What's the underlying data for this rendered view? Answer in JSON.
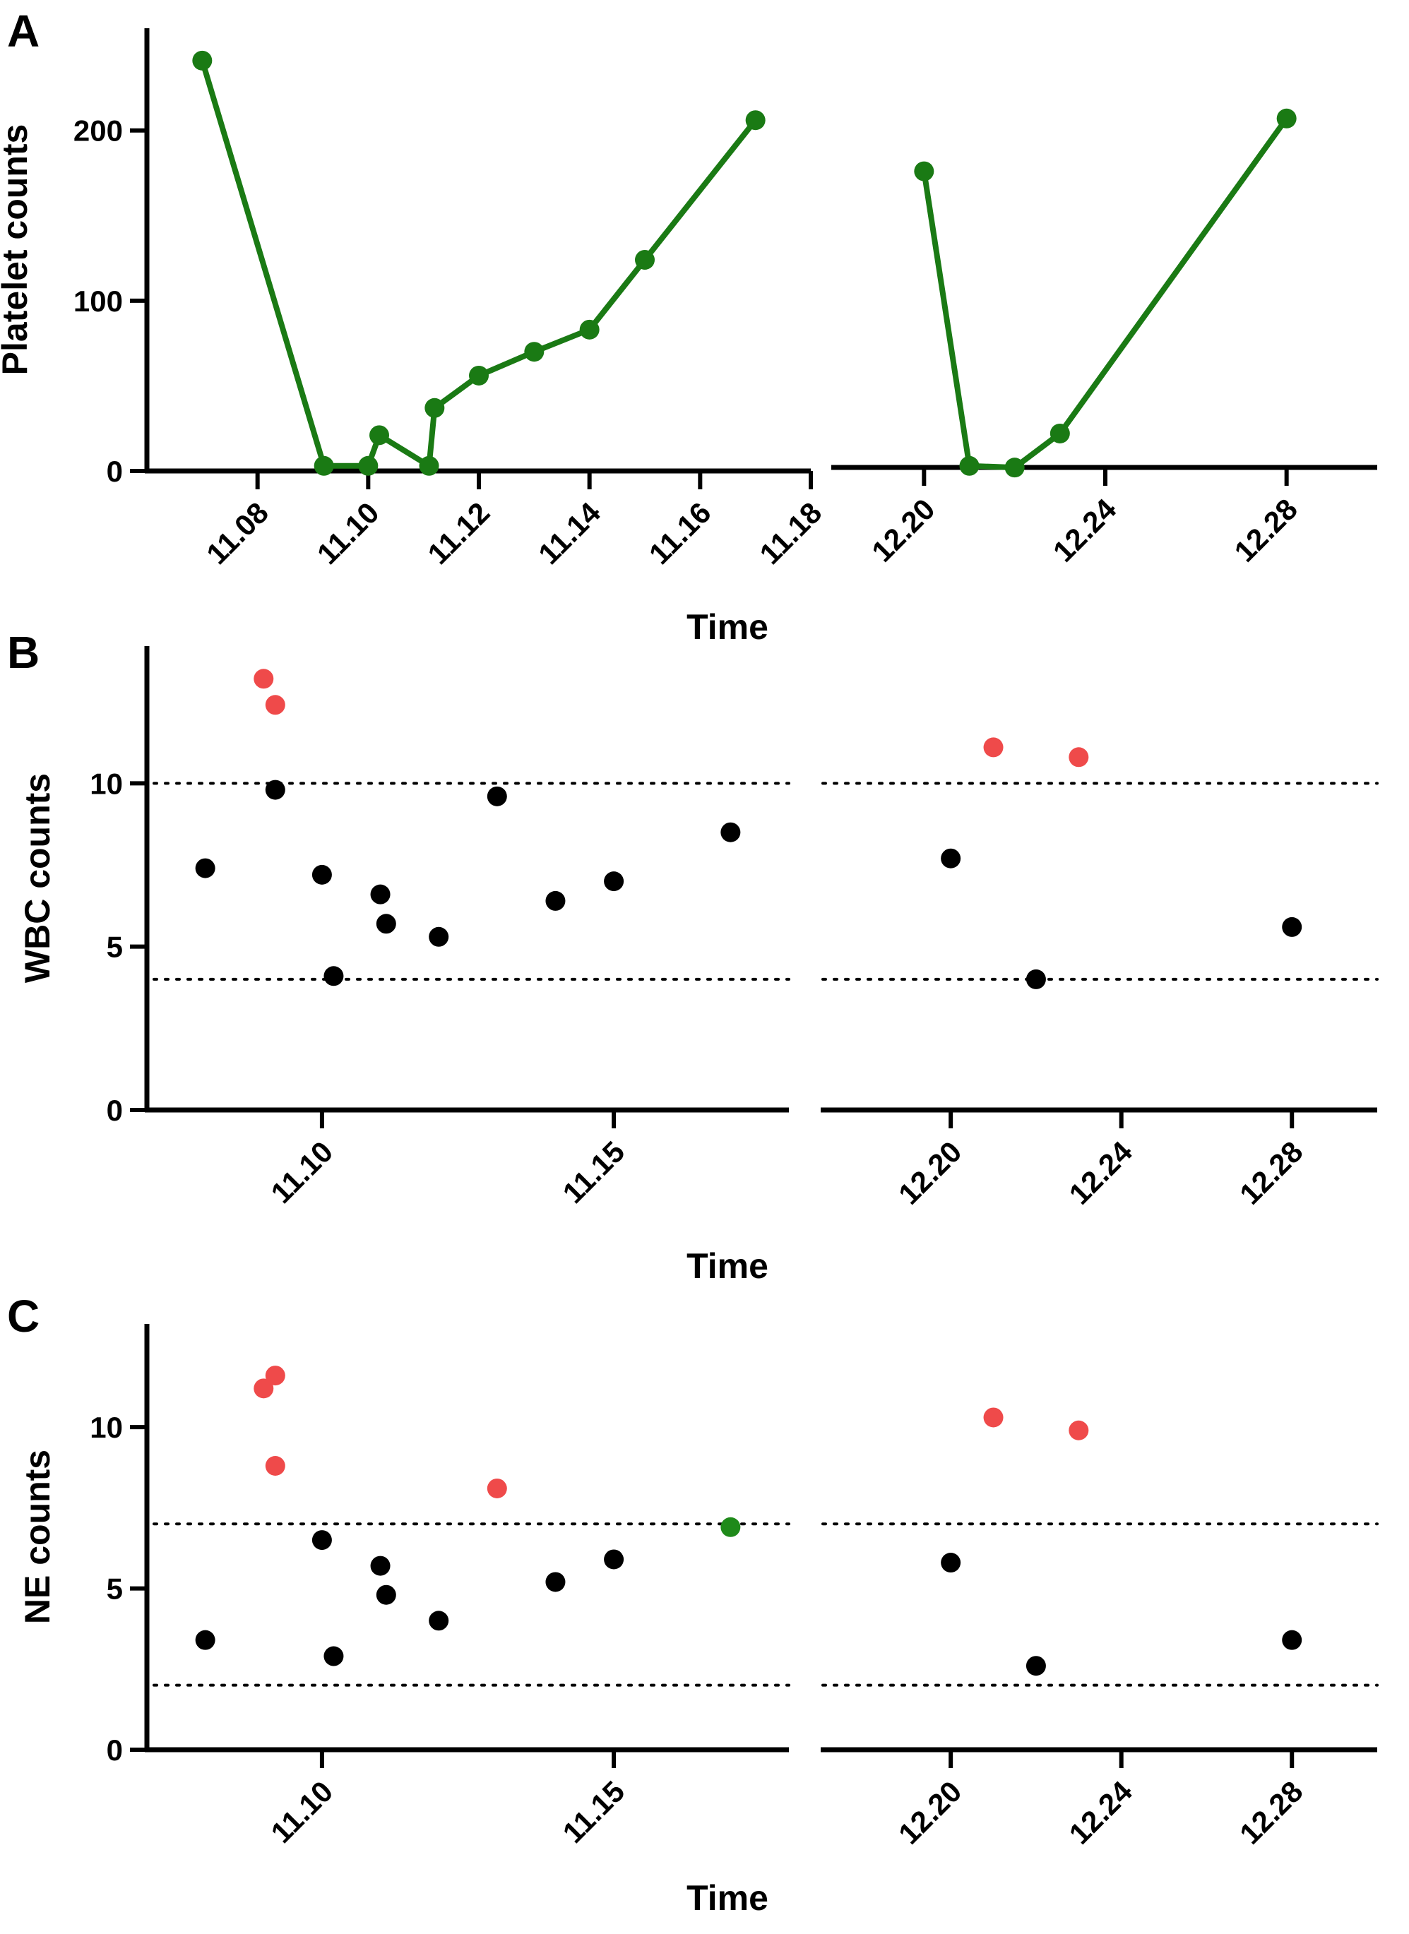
{
  "figure": {
    "colors": {
      "axis": "#000000",
      "line_green": "#1a7a14",
      "point_black": "#000000",
      "point_red": "#ef4a4a",
      "point_green": "#1f8a1a"
    }
  },
  "chart_data": [
    {
      "panel": "A",
      "type": "line",
      "ylabel": "Platelet counts",
      "xlabel": "Time",
      "ylim": [
        0,
        260
      ],
      "yticks": [
        0,
        100,
        200
      ],
      "segments": [
        {
          "xlim": [
            11.06,
            11.18
          ],
          "xticks": [
            "11.08",
            "11.10",
            "11.12",
            "11.14",
            "11.16",
            "11.18"
          ],
          "series": [
            {
              "name": "Platelet",
              "x": [
                11.07,
                11.092,
                11.1,
                11.102,
                11.111,
                11.112,
                11.12,
                11.13,
                11.14,
                11.15,
                11.17
              ],
              "y": [
                241,
                3,
                3,
                21,
                3,
                37,
                56,
                70,
                83,
                124,
                206
              ]
            }
          ]
        },
        {
          "xlim": [
            12.18,
            12.3
          ],
          "xticks": [
            "12.20",
            "12.24",
            "12.28"
          ],
          "series": [
            {
              "name": "Platelet",
              "x": [
                12.2,
                12.21,
                12.22,
                12.23,
                12.28
              ],
              "y": [
                176,
                3,
                2,
                22,
                207
              ]
            }
          ]
        }
      ]
    },
    {
      "panel": "B",
      "type": "scatter",
      "ylabel": "WBC counts",
      "xlabel": "Time",
      "ylim": [
        0,
        14.2
      ],
      "yticks": [
        0,
        5,
        10
      ],
      "reference_lines": [
        4,
        10
      ],
      "segments": [
        {
          "xlim": [
            11.07,
            11.18
          ],
          "xticks": [
            "11.10",
            "11.15"
          ],
          "points": {
            "black": {
              "x": [
                11.08,
                11.092,
                11.1,
                11.102,
                11.11,
                11.111,
                11.12,
                11.13,
                11.14,
                11.15,
                11.17
              ],
              "y": [
                7.4,
                9.8,
                7.2,
                4.1,
                6.6,
                5.7,
                5.3,
                9.6,
                6.4,
                7.0,
                8.5
              ]
            },
            "red": {
              "x": [
                11.09,
                11.092
              ],
              "y": [
                13.2,
                12.4
              ]
            }
          }
        },
        {
          "xlim": [
            12.17,
            12.3
          ],
          "xticks": [
            "12.20",
            "12.24",
            "12.28"
          ],
          "points": {
            "black": {
              "x": [
                12.2,
                12.22,
                12.28
              ],
              "y": [
                7.7,
                4.0,
                5.6
              ]
            },
            "red": {
              "x": [
                12.21,
                12.23
              ],
              "y": [
                11.1,
                10.8
              ]
            }
          }
        }
      ]
    },
    {
      "panel": "C",
      "type": "scatter",
      "ylabel": "NE counts",
      "xlabel": "Time",
      "ylim": [
        0,
        13.2
      ],
      "yticks": [
        0,
        5,
        10
      ],
      "reference_lines": [
        2,
        7
      ],
      "segments": [
        {
          "xlim": [
            11.07,
            11.18
          ],
          "xticks": [
            "11.10",
            "11.15"
          ],
          "points": {
            "black": {
              "x": [
                11.08,
                11.1,
                11.102,
                11.11,
                11.111,
                11.12,
                11.14,
                11.15
              ],
              "y": [
                3.4,
                6.5,
                2.9,
                5.7,
                4.8,
                4.0,
                5.2,
                5.9
              ]
            },
            "red": {
              "x": [
                11.09,
                11.092,
                11.092,
                11.13
              ],
              "y": [
                11.2,
                11.6,
                8.8,
                8.1
              ]
            },
            "green": {
              "x": [
                11.17
              ],
              "y": [
                6.9
              ]
            }
          }
        },
        {
          "xlim": [
            12.17,
            12.3
          ],
          "xticks": [
            "12.20",
            "12.24",
            "12.28"
          ],
          "points": {
            "black": {
              "x": [
                12.2,
                12.22,
                12.28
              ],
              "y": [
                5.8,
                2.6,
                3.4
              ]
            },
            "red": {
              "x": [
                12.21,
                12.23
              ],
              "y": [
                10.3,
                9.9
              ]
            }
          }
        }
      ]
    }
  ]
}
